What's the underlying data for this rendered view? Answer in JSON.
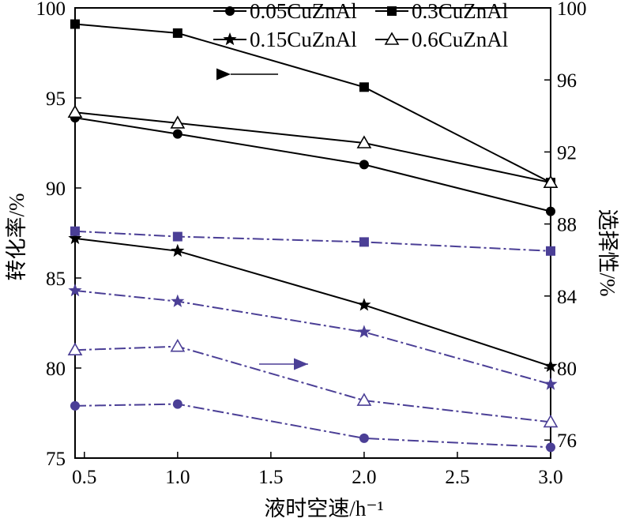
{
  "chart_data": {
    "type": "line",
    "x": [
      0.45,
      1.0,
      2.0,
      3.0
    ],
    "xlabel": "液时空速/h⁻¹",
    "ylabel_left": "转化率/%",
    "ylabel_right": "选择性/%",
    "xlim": [
      0.45,
      3.0
    ],
    "ylim_left": [
      75,
      100
    ],
    "ylim_right": [
      75,
      100
    ],
    "xticks": [
      "0.5",
      "1.0",
      "1.5",
      "2.0",
      "2.5",
      "3.0"
    ],
    "yticks_left": [
      "75",
      "80",
      "85",
      "90",
      "95",
      "100"
    ],
    "yticks_right": [
      "76",
      "80",
      "84",
      "88",
      "92",
      "96",
      "100"
    ],
    "grid": false,
    "legend": [
      "0.05CuZnAl",
      "0.3CuZnAl",
      "0.15CuZnAl",
      "0.6CuZnAl"
    ],
    "legend_position": "top",
    "series": [
      {
        "name": "0.05CuZnAl",
        "axis": "left",
        "marker": "circle",
        "color": "#000000",
        "values": [
          93.9,
          93.0,
          91.3,
          88.7
        ]
      },
      {
        "name": "0.3CuZnAl",
        "axis": "left",
        "marker": "square",
        "color": "#000000",
        "values": [
          99.1,
          98.6,
          95.6,
          90.3
        ]
      },
      {
        "name": "0.15CuZnAl",
        "axis": "left",
        "marker": "star",
        "color": "#000000",
        "values": [
          87.2,
          86.5,
          83.5,
          80.1
        ]
      },
      {
        "name": "0.6CuZnAl",
        "axis": "left",
        "marker": "triangle-open",
        "color": "#000000",
        "values": [
          94.2,
          93.6,
          92.5,
          90.3
        ]
      },
      {
        "name": "0.05CuZnAl",
        "axis": "right",
        "marker": "circle",
        "color": "#4b3f96",
        "values": [
          77.9,
          78.0,
          76.1,
          75.6
        ]
      },
      {
        "name": "0.3CuZnAl",
        "axis": "right",
        "marker": "square",
        "color": "#4b3f96",
        "values": [
          87.6,
          87.3,
          87.0,
          86.5
        ]
      },
      {
        "name": "0.15CuZnAl",
        "axis": "right",
        "marker": "star",
        "color": "#4b3f96",
        "values": [
          84.3,
          83.7,
          82.0,
          79.1
        ]
      },
      {
        "name": "0.6CuZnAl",
        "axis": "right",
        "marker": "triangle-open",
        "color": "#4b3f96",
        "values": [
          81.0,
          81.2,
          78.2,
          77.0
        ]
      }
    ]
  }
}
